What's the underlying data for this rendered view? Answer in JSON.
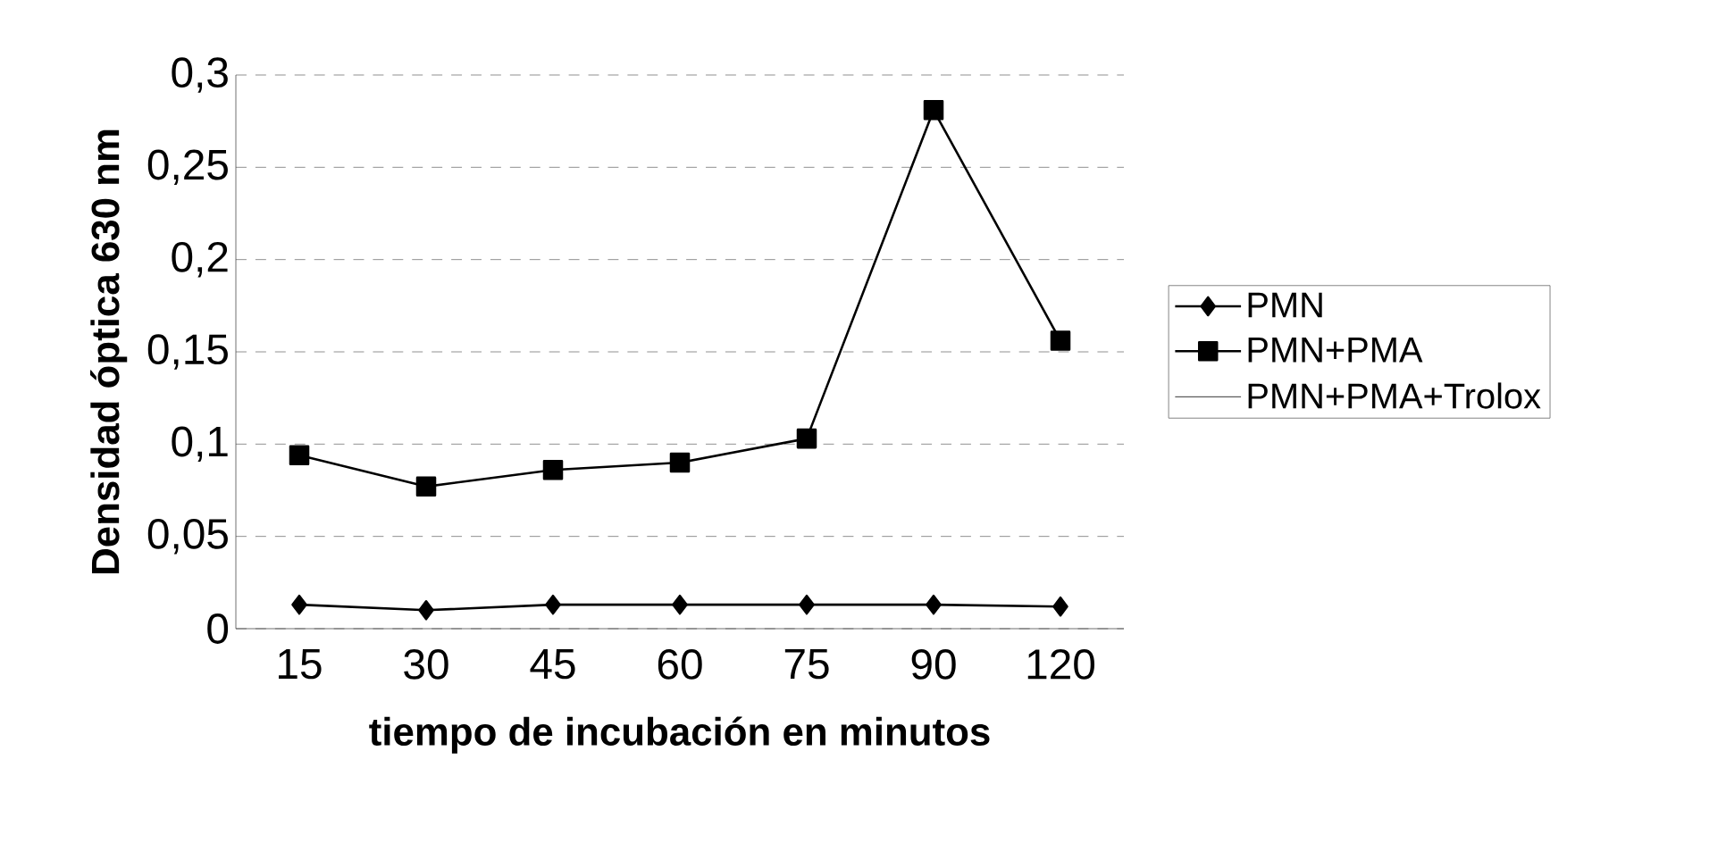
{
  "chart_data": {
    "type": "line",
    "xlabel": "tiempo de incubación en minutos",
    "ylabel": "Densidad óptica 630 nm",
    "categories": [
      "15",
      "30",
      "45",
      "60",
      "75",
      "90",
      "120"
    ],
    "series": [
      {
        "name": "PMN",
        "color": "#000000",
        "marker": "diamond",
        "values": [
          0.013,
          0.01,
          0.013,
          0.013,
          0.013,
          0.013,
          0.012
        ]
      },
      {
        "name": "PMN+PMA",
        "color": "#000000",
        "marker": "square",
        "values": [
          0.094,
          0.077,
          0.086,
          0.09,
          0.103,
          0.281,
          0.156
        ]
      },
      {
        "name": "PMN+PMA+Trolox",
        "marker": "none",
        "values": [
          null,
          null,
          null,
          null,
          null,
          null,
          null
        ]
      }
    ],
    "ylim": [
      0,
      0.3
    ],
    "yticks": [
      {
        "value": 0,
        "label": "0"
      },
      {
        "value": 0.05,
        "label": "0,05"
      },
      {
        "value": 0.1,
        "label": "0,1"
      },
      {
        "value": 0.15,
        "label": "0,15"
      },
      {
        "value": 0.2,
        "label": "0,2"
      },
      {
        "value": 0.25,
        "label": "0,25"
      },
      {
        "value": 0.3,
        "label": "0,3"
      }
    ],
    "grid": "y",
    "legend": "right",
    "line_style": "solid"
  }
}
